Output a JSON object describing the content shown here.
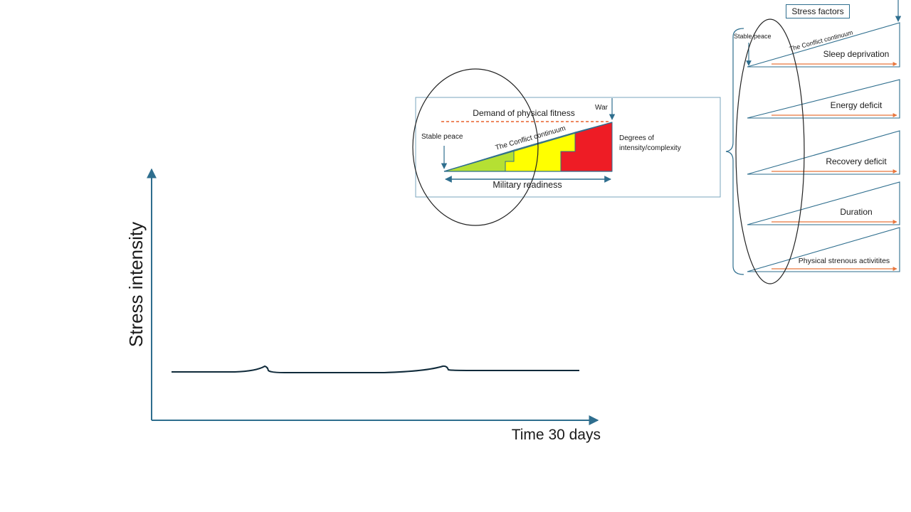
{
  "main_chart": {
    "y_axis_label": "Stress intensity",
    "x_axis_label": "Time 30 days"
  },
  "conflict_panel": {
    "demand_label": "Demand of physical fitness",
    "war_label": "War",
    "stable_peace_label": "Stable peace",
    "continuum_label": "The Conflict continuum",
    "degrees_label_line1": "Degrees of",
    "degrees_label_line2": "intensity/complexity",
    "readiness_label": "Military readiness",
    "colors": {
      "green": "#b5e033",
      "yellow": "#ffff00",
      "red": "#ee1c25",
      "line": "#2e6e8e",
      "demand_dash": "#e8602c"
    }
  },
  "stress_panel": {
    "title": "Stress factors",
    "stable_peace_label": "Stable peace",
    "continuum_label": "The Conflict continuum",
    "factors": [
      "Sleep deprivation",
      "Energy deficit",
      "Recovery deficit",
      "Duration",
      "Physical strenous activitites"
    ],
    "colors": {
      "line": "#2e6e8e",
      "arrow": "#e8763c"
    }
  }
}
